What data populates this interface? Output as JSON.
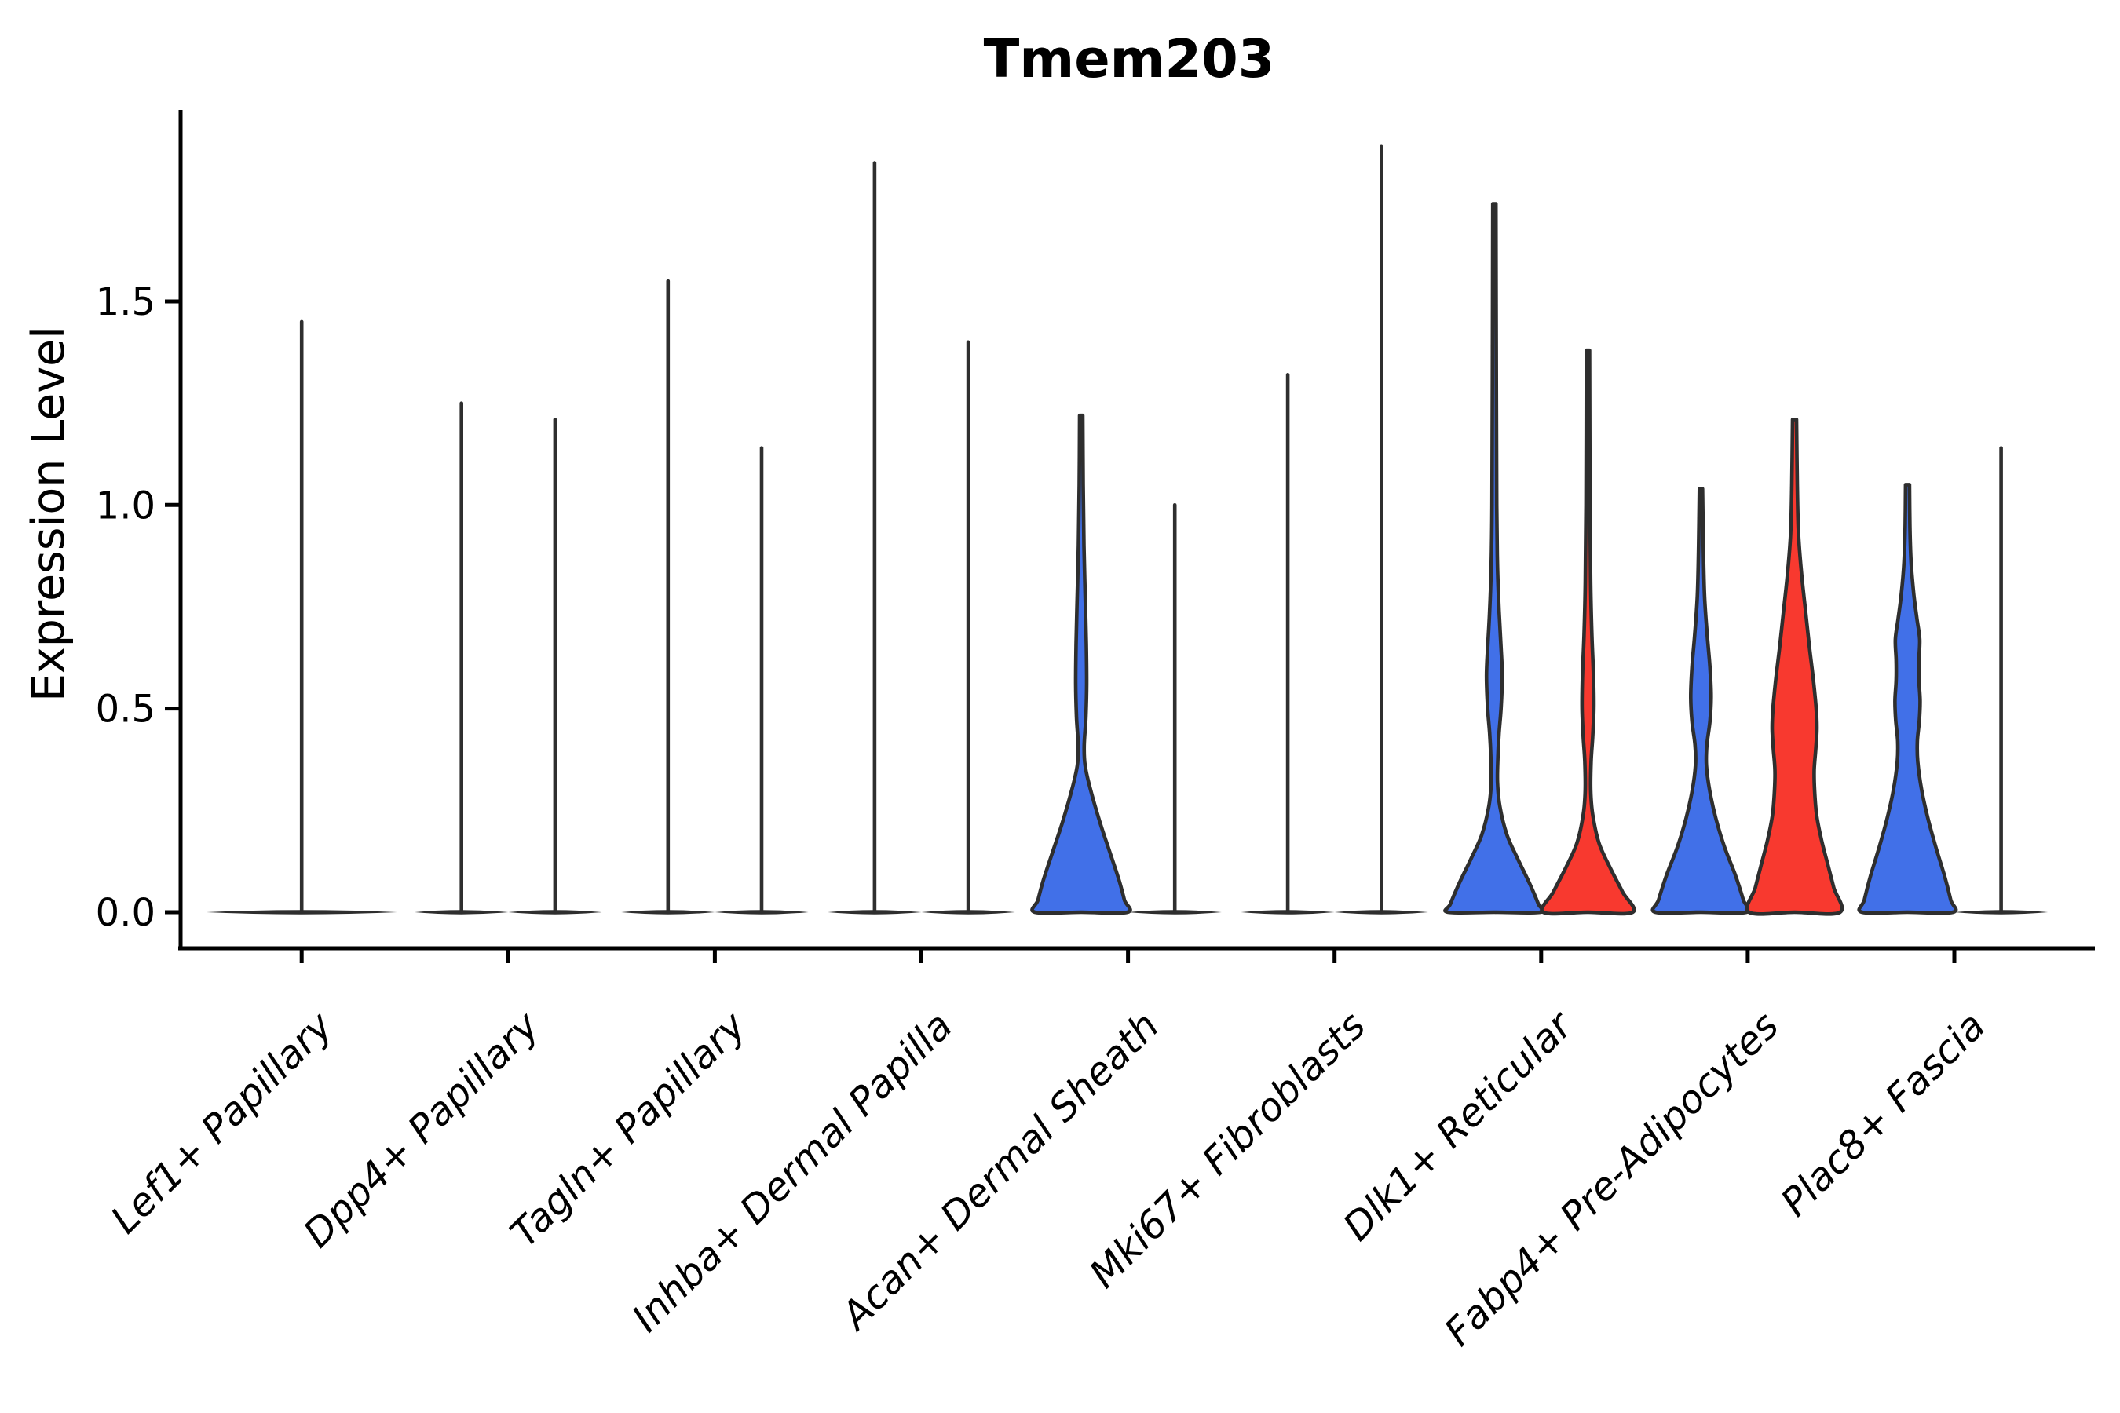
{
  "chart_data": {
    "type": "violin",
    "title": "Tmem203",
    "ylabel": "Expression Level",
    "xlabel": "",
    "ytick_labels": [
      "0.0",
      "0.5",
      "1.0",
      "1.5"
    ],
    "ytick_values": [
      0.0,
      0.5,
      1.0,
      1.5
    ],
    "ylim": [
      -0.09,
      1.97
    ],
    "grid": false,
    "legend": "none",
    "categories": [
      "Lef1+ Papillary",
      "Dpp4+ Papillary",
      "Tagln+ Papillary",
      "Inhba+ Dermal Papilla",
      "Acan+ Dermal Sheath",
      "Mki67+ Fibroblasts",
      "Dlk1+ Reticular",
      "Fabp4+ Pre-Adipocytes",
      "Plac8+ Fascia"
    ],
    "colors": {
      "group1_blue": "#4170E8",
      "group2_red": "#F8392F",
      "outline": "#2E2E2E",
      "axis": "#000000"
    },
    "violins": [
      {
        "category": 0,
        "position": "center",
        "group": 1,
        "max": 1.45,
        "kind": "spike",
        "wide": true
      },
      {
        "category": 1,
        "position": "left",
        "group": 1,
        "max": 1.25,
        "kind": "spike"
      },
      {
        "category": 1,
        "position": "right",
        "group": 2,
        "max": 1.21,
        "kind": "spike"
      },
      {
        "category": 2,
        "position": "left",
        "group": 1,
        "max": 1.55,
        "kind": "spike"
      },
      {
        "category": 2,
        "position": "right",
        "group": 2,
        "max": 1.14,
        "kind": "spike"
      },
      {
        "category": 3,
        "position": "left",
        "group": 1,
        "max": 1.84,
        "kind": "spike"
      },
      {
        "category": 3,
        "position": "right",
        "group": 2,
        "max": 1.4,
        "kind": "spike"
      },
      {
        "category": 4,
        "position": "left",
        "group": 1,
        "max": 1.22,
        "kind": "curve",
        "profile": [
          [
            1.22,
            2
          ],
          [
            1.05,
            2.5
          ],
          [
            0.9,
            3.5
          ],
          [
            0.78,
            5
          ],
          [
            0.66,
            6.5
          ],
          [
            0.56,
            7
          ],
          [
            0.48,
            6
          ],
          [
            0.41,
            3.8
          ],
          [
            0.36,
            5
          ],
          [
            0.3,
            12
          ],
          [
            0.22,
            24
          ],
          [
            0.15,
            36
          ],
          [
            0.08,
            48
          ],
          [
            0.03,
            55
          ],
          [
            0.0,
            59
          ]
        ]
      },
      {
        "category": 4,
        "position": "right",
        "group": 2,
        "max": 1.0,
        "kind": "spike"
      },
      {
        "category": 5,
        "position": "left",
        "group": 1,
        "max": 1.32,
        "kind": "spike"
      },
      {
        "category": 5,
        "position": "right",
        "group": 2,
        "max": 1.88,
        "kind": "spike"
      },
      {
        "category": 6,
        "position": "left",
        "group": 1,
        "max": 1.74,
        "kind": "curve",
        "profile": [
          [
            1.74,
            2
          ],
          [
            1.3,
            2.5
          ],
          [
            1.0,
            3
          ],
          [
            0.85,
            4
          ],
          [
            0.74,
            6
          ],
          [
            0.65,
            8.5
          ],
          [
            0.58,
            10
          ],
          [
            0.5,
            8.5
          ],
          [
            0.44,
            6
          ],
          [
            0.38,
            4.5
          ],
          [
            0.32,
            4
          ],
          [
            0.26,
            7
          ],
          [
            0.19,
            16
          ],
          [
            0.13,
            30
          ],
          [
            0.07,
            45
          ],
          [
            0.02,
            56
          ],
          [
            0.0,
            59
          ]
        ]
      },
      {
        "category": 6,
        "position": "right",
        "group": 2,
        "max": 1.38,
        "kind": "curve",
        "profile": [
          [
            1.38,
            2
          ],
          [
            1.0,
            2.5
          ],
          [
            0.8,
            3.5
          ],
          [
            0.68,
            5
          ],
          [
            0.58,
            7
          ],
          [
            0.5,
            7.5
          ],
          [
            0.43,
            6
          ],
          [
            0.37,
            4
          ],
          [
            0.3,
            3.5
          ],
          [
            0.24,
            6
          ],
          [
            0.17,
            14
          ],
          [
            0.11,
            28
          ],
          [
            0.05,
            44
          ],
          [
            0.0,
            57
          ]
        ]
      },
      {
        "category": 7,
        "position": "left",
        "group": 1,
        "max": 1.04,
        "kind": "curve",
        "profile": [
          [
            1.04,
            2
          ],
          [
            0.9,
            3
          ],
          [
            0.78,
            4.5
          ],
          [
            0.68,
            8
          ],
          [
            0.6,
            11.5
          ],
          [
            0.53,
            13
          ],
          [
            0.47,
            11.5
          ],
          [
            0.41,
            7.5
          ],
          [
            0.36,
            7
          ],
          [
            0.3,
            11
          ],
          [
            0.23,
            19
          ],
          [
            0.16,
            30
          ],
          [
            0.09,
            44
          ],
          [
            0.03,
            54
          ],
          [
            0.0,
            58
          ]
        ]
      },
      {
        "category": 7,
        "position": "right",
        "group": 2,
        "max": 1.21,
        "kind": "curve",
        "profile": [
          [
            1.21,
            2.5
          ],
          [
            1.05,
            3.5
          ],
          [
            0.93,
            5
          ],
          [
            0.83,
            9
          ],
          [
            0.74,
            14
          ],
          [
            0.65,
            19
          ],
          [
            0.57,
            24
          ],
          [
            0.5,
            27.5
          ],
          [
            0.45,
            28.5
          ],
          [
            0.4,
            27
          ],
          [
            0.35,
            25
          ],
          [
            0.3,
            25.5
          ],
          [
            0.24,
            28
          ],
          [
            0.18,
            34
          ],
          [
            0.12,
            42
          ],
          [
            0.06,
            50
          ],
          [
            0.0,
            58
          ]
        ]
      },
      {
        "category": 8,
        "position": "left",
        "group": 1,
        "max": 1.05,
        "kind": "curve",
        "profile": [
          [
            1.05,
            2.5
          ],
          [
            0.95,
            3
          ],
          [
            0.86,
            4.5
          ],
          [
            0.78,
            8
          ],
          [
            0.72,
            12
          ],
          [
            0.67,
            15.5
          ],
          [
            0.62,
            14.5
          ],
          [
            0.57,
            14.5
          ],
          [
            0.52,
            16
          ],
          [
            0.47,
            15
          ],
          [
            0.42,
            12.5
          ],
          [
            0.37,
            13
          ],
          [
            0.3,
            18
          ],
          [
            0.23,
            26
          ],
          [
            0.16,
            36
          ],
          [
            0.09,
            47
          ],
          [
            0.03,
            55
          ],
          [
            0.0,
            58
          ]
        ]
      },
      {
        "category": 8,
        "position": "right",
        "group": 2,
        "max": 1.14,
        "kind": "spike"
      }
    ]
  }
}
